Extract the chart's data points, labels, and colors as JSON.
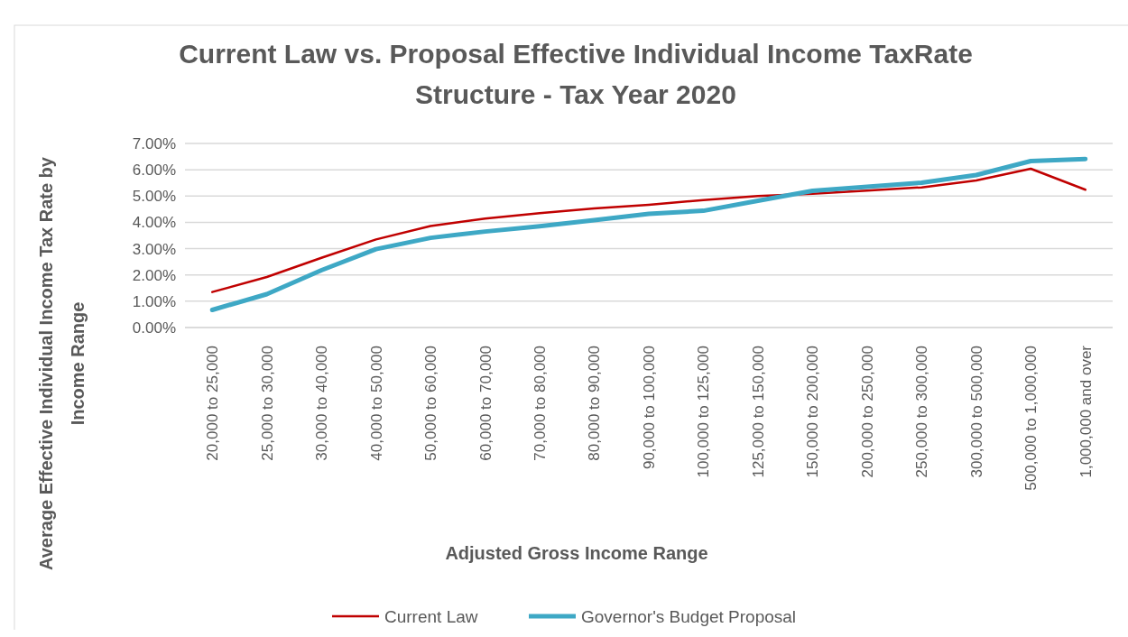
{
  "chart_data": {
    "type": "line",
    "title": "Current Law vs. Proposal Effective Individual Income TaxRate Structure - Tax Year 2020",
    "xlabel": "Adjusted Gross Income Range",
    "ylabel": "Average Effective Individual Income Tax Rate by Income Range",
    "categories": [
      "20,000 to 25,000",
      "25,000 to 30,000",
      "30,000 to 40,000",
      "40,000 to 50,000",
      "50,000 to 60,000",
      "60,000 to 70,000",
      "70,000 to 80,000",
      "80,000 to 90,000",
      "90,000 to 100,000",
      "100,000 to 125,000",
      "125,000 to 150,000",
      "150,000 to 200,000",
      "200,000 to 250,000",
      "250,000 to 300,000",
      "300,000 to 500,000",
      "500,000 to 1,000,000",
      "1,000,000 and over"
    ],
    "series": [
      {
        "name": "Current Law",
        "color": "#c00000",
        "values": [
          1.35,
          1.92,
          2.65,
          3.35,
          3.86,
          4.14,
          4.35,
          4.53,
          4.67,
          4.85,
          5.0,
          5.09,
          5.21,
          5.33,
          5.59,
          6.04,
          5.24
        ]
      },
      {
        "name": "Governor's Budget Proposal",
        "color": "#3ea8c5",
        "values": [
          0.67,
          1.27,
          2.18,
          2.98,
          3.41,
          3.65,
          3.85,
          4.08,
          4.32,
          4.44,
          4.82,
          5.2,
          5.35,
          5.51,
          5.8,
          6.33,
          6.41
        ]
      }
    ],
    "ylim": [
      0,
      7
    ],
    "yticks": [
      {
        "value": 0,
        "label": "0.00%"
      },
      {
        "value": 1,
        "label": "1.00%"
      },
      {
        "value": 2,
        "label": "2.00%"
      },
      {
        "value": 3,
        "label": "3.00%"
      },
      {
        "value": 4,
        "label": "4.00%"
      },
      {
        "value": 5,
        "label": "5.00%"
      },
      {
        "value": 6,
        "label": "6.00%"
      },
      {
        "value": 7,
        "label": "7.00%"
      }
    ],
    "grid": "y",
    "legend": "bottom",
    "marker": "none",
    "line_style": "solid"
  }
}
